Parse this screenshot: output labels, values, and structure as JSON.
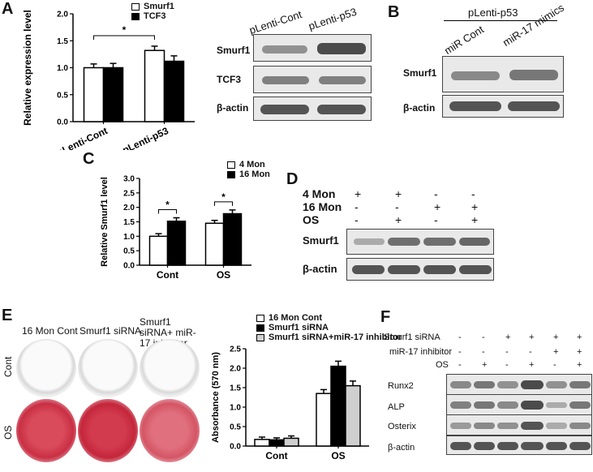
{
  "panels": {
    "a": "A",
    "b": "B",
    "c": "C",
    "d": "D",
    "e": "E",
    "f": "F"
  },
  "a": {
    "legend": [
      "Smurf1",
      "TCF3"
    ],
    "blot_headers": [
      "pLenti-Cont",
      "pLenti-p53"
    ],
    "blot_rows": [
      "Smurf1",
      "TCF3",
      "β-actin"
    ],
    "sig": "*"
  },
  "b": {
    "group": "pLenti-p53",
    "headers": [
      "miR Cont",
      "miR-17 mimics"
    ],
    "rows": [
      "Smurf1",
      "β-actin"
    ]
  },
  "c": {
    "legend": [
      "4 Mon",
      "16 Mon"
    ],
    "sig": "*"
  },
  "d": {
    "row_labels": [
      "4 Mon",
      "16 Mon",
      "OS"
    ],
    "signs": [
      [
        "+",
        "+",
        "-",
        "-"
      ],
      [
        "-",
        "-",
        "+",
        "+"
      ],
      [
        "-",
        "+",
        "-",
        "+"
      ]
    ],
    "rows": [
      "Smurf1",
      "β-actin"
    ]
  },
  "e": {
    "col_labels": [
      "16 Mon Cont",
      "Smurf1 siRNA",
      "Smurf1 siRNA+ miR-17 inhibitor"
    ],
    "row_labels": [
      "Cont",
      "OS"
    ],
    "legend": [
      "16 Mon Cont",
      "Smurf1 siRNA",
      "Smurf1 siRNA+miR-17 inhibitor"
    ]
  },
  "f": {
    "row_labels": [
      "Smurf1 siRNA",
      "miR-17 inhibitor",
      "OS"
    ],
    "signs": [
      [
        "-",
        "-",
        "+",
        "+",
        "+",
        "+"
      ],
      [
        "-",
        "-",
        "-",
        "-",
        "+",
        "+"
      ],
      [
        "-",
        "+",
        "-",
        "+",
        "-",
        "+"
      ]
    ],
    "rows": [
      "Runx2",
      "ALP",
      "Osterix",
      "β-actin"
    ]
  },
  "chart_data": [
    {
      "type": "bar",
      "categories": [
        "pLenti-Cont",
        "pLenti-p53"
      ],
      "series": [
        {
          "name": "Smurf1",
          "values": [
            1.0,
            1.32
          ],
          "errors": [
            0.07,
            0.08
          ]
        },
        {
          "name": "TCF3",
          "values": [
            1.0,
            1.12
          ],
          "errors": [
            0.08,
            0.1
          ]
        }
      ],
      "ylabel": "Relative expression level",
      "ylim": [
        0,
        2.0
      ],
      "yticks": [
        "0.0",
        "0.5",
        "1.0",
        "1.5",
        "2.0"
      ]
    },
    {
      "type": "bar",
      "categories": [
        "Cont",
        "OS"
      ],
      "series": [
        {
          "name": "4 Mon",
          "values": [
            1.0,
            1.45
          ],
          "errors": [
            0.09,
            0.1
          ]
        },
        {
          "name": "16 Mon",
          "values": [
            1.52,
            1.78
          ],
          "errors": [
            0.12,
            0.13
          ]
        }
      ],
      "ylabel": "Relative Smurf1 level",
      "ylim": [
        0,
        3.0
      ],
      "yticks": [
        "0.0",
        "0.5",
        "1.0",
        "1.5",
        "2.0",
        "2.5",
        "3.0"
      ]
    },
    {
      "type": "bar",
      "categories": [
        "Cont",
        "OS"
      ],
      "series": [
        {
          "name": "16 Mon Cont",
          "values": [
            0.17,
            1.35
          ],
          "errors": [
            0.06,
            0.1
          ]
        },
        {
          "name": "Smurf1 siRNA",
          "values": [
            0.16,
            2.05
          ],
          "errors": [
            0.05,
            0.13
          ]
        },
        {
          "name": "Smurf1 siRNA+miR-17 inhibitor",
          "values": [
            0.2,
            1.55
          ],
          "errors": [
            0.06,
            0.12
          ]
        }
      ],
      "ylabel": "Absorbance (570 nm)",
      "ylim": [
        0,
        2.5
      ],
      "yticks": [
        "0.0",
        "0.5",
        "1.0",
        "1.5",
        "2.0",
        "2.5"
      ]
    }
  ]
}
